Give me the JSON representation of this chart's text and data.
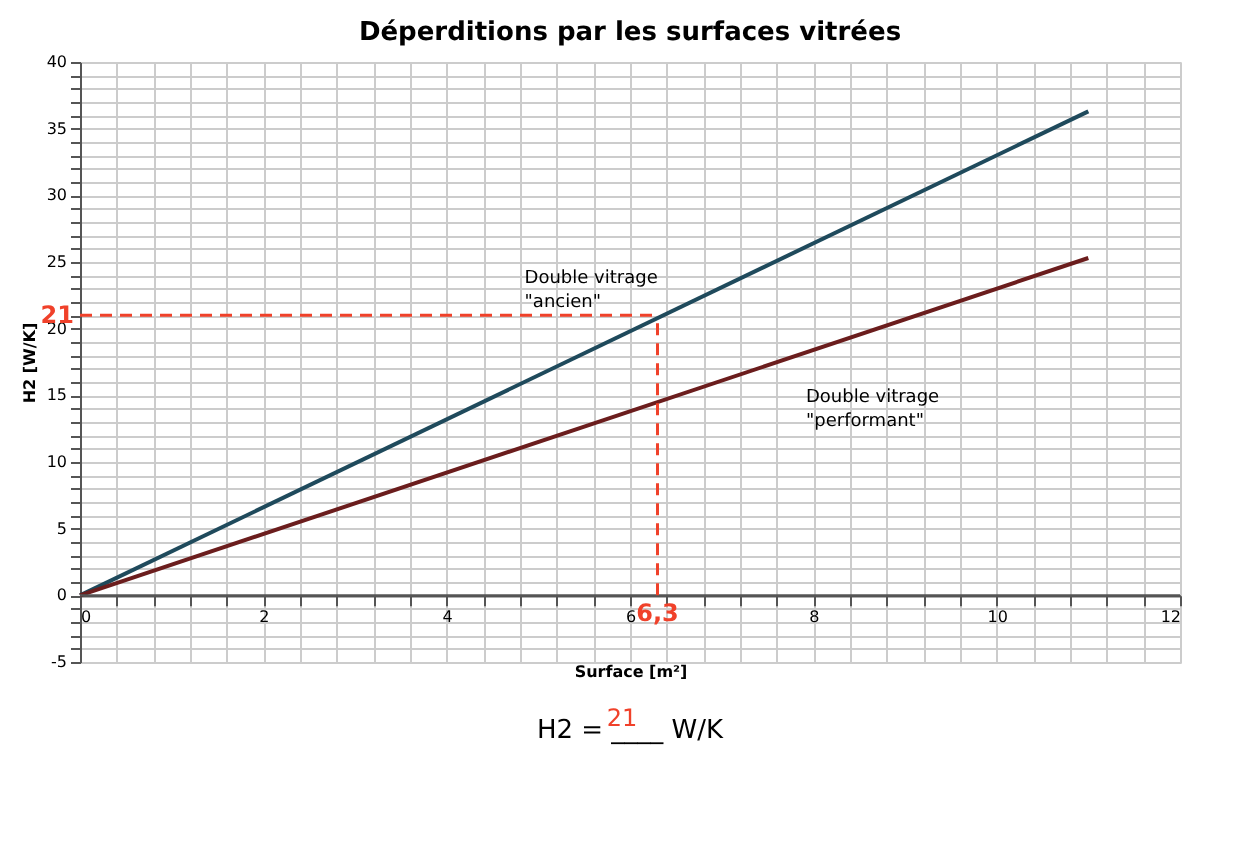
{
  "chart_data": {
    "type": "line",
    "title": "Déperditions par les surfaces vitrées",
    "xlabel": "Surface [m²]",
    "ylabel": "H2 [W/K]",
    "x": [
      0,
      11
    ],
    "series": [
      {
        "name": "Double vitrage\n\"ancien\"",
        "color": "#1f4a5c",
        "values": [
          0,
          36.3
        ]
      },
      {
        "name": "Double vitrage\n\"performant\"",
        "color": "#6b1d1d",
        "values": [
          0,
          25.3
        ]
      }
    ],
    "xlim": [
      0,
      12
    ],
    "ylim": [
      -5,
      40
    ],
    "xticks": [
      0,
      {
        "value": 0.4,
        "label": null
      },
      {
        "value": 0.8,
        "label": null
      },
      {
        "value": 1.2,
        "label": null
      },
      {
        "value": 1.6,
        "label": null
      },
      2,
      {
        "value": 2.4,
        "label": null
      },
      {
        "value": 2.8,
        "label": null
      },
      {
        "value": 3.2,
        "label": null
      },
      {
        "value": 3.6,
        "label": null
      },
      4,
      {
        "value": 4.4,
        "label": null
      },
      {
        "value": 4.8,
        "label": null
      },
      {
        "value": 5.2,
        "label": null
      },
      {
        "value": 5.6,
        "label": null
      },
      6,
      {
        "value": 6.4,
        "label": null
      },
      {
        "value": 6.8,
        "label": null
      },
      {
        "value": 7.2,
        "label": null
      },
      {
        "value": 7.6,
        "label": null
      },
      8,
      {
        "value": 8.4,
        "label": null
      },
      {
        "value": 8.8,
        "label": null
      },
      {
        "value": 9.2,
        "label": null
      },
      {
        "value": 9.6,
        "label": null
      },
      10,
      {
        "value": 10.4,
        "label": null
      },
      {
        "value": 10.8,
        "label": null
      },
      {
        "value": 11.2,
        "label": null
      },
      {
        "value": 11.6,
        "label": null
      },
      12
    ],
    "yticks": [
      -5,
      {
        "value": -4,
        "label": null
      },
      {
        "value": -3,
        "label": null
      },
      {
        "value": -2,
        "label": null
      },
      {
        "value": -1,
        "label": null
      },
      0,
      {
        "value": 1,
        "label": null
      },
      {
        "value": 2,
        "label": null
      },
      {
        "value": 3,
        "label": null
      },
      {
        "value": 4,
        "label": null
      },
      5,
      {
        "value": 6,
        "label": null
      },
      {
        "value": 7,
        "label": null
      },
      {
        "value": 8,
        "label": null
      },
      {
        "value": 9,
        "label": null
      },
      10,
      {
        "value": 11,
        "label": null
      },
      {
        "value": 12,
        "label": null
      },
      {
        "value": 13,
        "label": null
      },
      {
        "value": 14,
        "label": null
      },
      15,
      {
        "value": 16,
        "label": null
      },
      {
        "value": 17,
        "label": null
      },
      {
        "value": 18,
        "label": null
      },
      {
        "value": 19,
        "label": null
      },
      20,
      {
        "value": 21,
        "label": null
      },
      {
        "value": 22,
        "label": null
      },
      {
        "value": 23,
        "label": null
      },
      {
        "value": 24,
        "label": null
      },
      25,
      {
        "value": 26,
        "label": null
      },
      {
        "value": 27,
        "label": null
      },
      {
        "value": 28,
        "label": null
      },
      {
        "value": 29,
        "label": null
      },
      30,
      {
        "value": 31,
        "label": null
      },
      {
        "value": 32,
        "label": null
      },
      {
        "value": 33,
        "label": null
      },
      {
        "value": 34,
        "label": null
      },
      35,
      {
        "value": 36,
        "label": null
      },
      {
        "value": 37,
        "label": null
      },
      {
        "value": 38,
        "label": null
      },
      {
        "value": 39,
        "label": null
      },
      40
    ],
    "grid": true,
    "marker": "none",
    "line_style": "solid",
    "legend": false,
    "ref_lines": [
      {
        "axis": "x",
        "value": 6.3,
        "label": "6,3",
        "color": "#f0412a",
        "line_style": "dashed"
      },
      {
        "axis": "y",
        "value": 21,
        "label": "21",
        "color": "#f0412a",
        "line_style": "dashed"
      }
    ],
    "annotations": [
      "H2 = ____ W/K",
      "21"
    ]
  }
}
